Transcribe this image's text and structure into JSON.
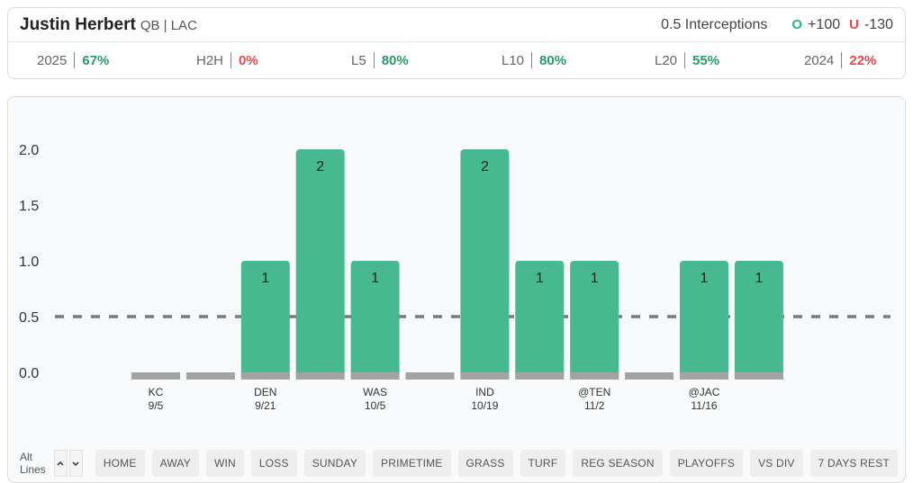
{
  "player": {
    "name": "Justin Herbert",
    "meta": "QB | LAC"
  },
  "prop": {
    "label": "0.5 Interceptions",
    "over_icon": "O",
    "over_odds": "+100",
    "under_icon": "U",
    "under_odds": "-130"
  },
  "stats": [
    {
      "label": "2025",
      "value": "67%",
      "status": "good"
    },
    {
      "label": "H2H",
      "value": "0%",
      "status": "bad"
    },
    {
      "label": "L5",
      "value": "80%",
      "status": "good"
    },
    {
      "label": "L10",
      "value": "80%",
      "status": "good"
    },
    {
      "label": "L20",
      "value": "55%",
      "status": "good"
    },
    {
      "label": "2024",
      "value": "22%",
      "status": "bad"
    }
  ],
  "colors": {
    "bar_hit": "#46b991",
    "bar_zero": "#a3a3a3",
    "bar_base": "#a3a3a3",
    "line": "#7a7a7a",
    "good": "#2a9a6a",
    "bad": "#e5484d"
  },
  "chart_data": {
    "type": "bar",
    "line_value": 0.5,
    "yticks": [
      "0.0",
      "0.5",
      "1.0",
      "1.5",
      "2.0"
    ],
    "ylim": [
      0,
      2
    ],
    "games": [
      {
        "opp": "KC",
        "date": "9/5",
        "value": 0
      },
      {
        "opp": "",
        "date": "",
        "value": 0
      },
      {
        "opp": "DEN",
        "date": "9/21",
        "value": 1
      },
      {
        "opp": "",
        "date": "",
        "value": 2
      },
      {
        "opp": "WAS",
        "date": "10/5",
        "value": 1
      },
      {
        "opp": "",
        "date": "",
        "value": 0
      },
      {
        "opp": "IND",
        "date": "10/19",
        "value": 2
      },
      {
        "opp": "",
        "date": "",
        "value": 1
      },
      {
        "opp": "@TEN",
        "date": "11/2",
        "value": 1
      },
      {
        "opp": "",
        "date": "",
        "value": 0
      },
      {
        "opp": "@JAC",
        "date": "11/16",
        "value": 1
      },
      {
        "opp": "",
        "date": "",
        "value": 1
      }
    ]
  },
  "filters": {
    "alt_lines_label": "Alt Lines",
    "up_icon": "chevron-up-icon",
    "down_icon": "chevron-down-icon",
    "items": [
      "HOME",
      "AWAY",
      "WIN",
      "LOSS",
      "SUNDAY",
      "PRIMETIME",
      "GRASS",
      "TURF",
      "REG SEASON",
      "PLAYOFFS",
      "VS DIV",
      "7 DAYS REST"
    ]
  }
}
